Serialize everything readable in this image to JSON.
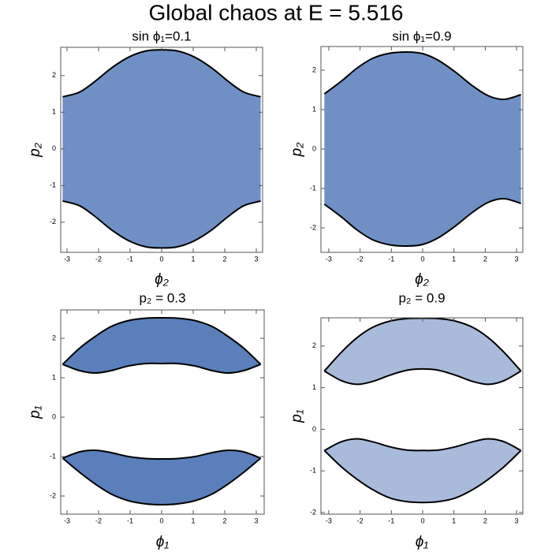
{
  "title": "Global chaos at E = 5.516",
  "chart_data": [
    {
      "type": "region",
      "title": "sin ϕ₁=0.1",
      "xlabel": "ϕ₂",
      "ylabel": "p₂",
      "xlim": [
        -3.2,
        3.2
      ],
      "ylim": [
        -2.82,
        2.77
      ],
      "xticks": [
        -3,
        -2,
        -1,
        0,
        1,
        2,
        3
      ],
      "yticks": [
        -2,
        -1,
        0,
        1,
        2
      ],
      "color": "#7090c5",
      "regions": [
        {
          "x": [
            -3.14,
            -2.6,
            -2.1,
            -1.6,
            -1.05,
            -0.5,
            0,
            0.5,
            1.05,
            1.6,
            2.1,
            2.6,
            3.14
          ],
          "upper": [
            1.42,
            1.55,
            1.85,
            2.2,
            2.5,
            2.67,
            2.7,
            2.67,
            2.5,
            2.2,
            1.85,
            1.55,
            1.42
          ],
          "lower": [
            -1.42,
            -1.55,
            -1.85,
            -2.2,
            -2.5,
            -2.67,
            -2.7,
            -2.67,
            -2.5,
            -2.2,
            -1.85,
            -1.55,
            -1.42
          ]
        }
      ]
    },
    {
      "type": "region",
      "title": "sin ϕ₁=0.9",
      "xlabel": "ϕ₂",
      "ylabel": "p₂",
      "xlim": [
        -3.25,
        3.2
      ],
      "ylim": [
        -2.62,
        2.6
      ],
      "xticks": [
        -3,
        -2,
        -1,
        0,
        1,
        2,
        3
      ],
      "yticks": [
        -2,
        -1,
        0,
        1,
        2
      ],
      "color": "#7090c5",
      "regions": [
        {
          "x": [
            -3.14,
            -2.6,
            -2.1,
            -1.6,
            -1.05,
            -0.5,
            0,
            0.5,
            1.05,
            1.6,
            2.1,
            2.6,
            3.14
          ],
          "upper": [
            1.4,
            1.72,
            2.05,
            2.3,
            2.43,
            2.46,
            2.42,
            2.25,
            1.95,
            1.6,
            1.35,
            1.26,
            1.38
          ],
          "lower": [
            -1.4,
            -1.72,
            -2.05,
            -2.3,
            -2.43,
            -2.46,
            -2.42,
            -2.25,
            -1.95,
            -1.6,
            -1.35,
            -1.26,
            -1.38
          ]
        }
      ]
    },
    {
      "type": "region",
      "title": "p₂ = 0.3",
      "xlabel": "ϕ₁",
      "ylabel": "p₁",
      "xlim": [
        -3.2,
        3.25
      ],
      "ylim": [
        -2.46,
        2.72
      ],
      "xticks": [
        -3,
        -2,
        -1,
        0,
        1,
        2,
        3
      ],
      "yticks": [
        -2,
        -1,
        0,
        1,
        2
      ],
      "color": "#5a7fbb",
      "regions": [
        {
          "x": [
            -3.14,
            -2.6,
            -2.1,
            -1.6,
            -1.05,
            -0.5,
            0,
            0.5,
            1.05,
            1.6,
            2.1,
            2.6,
            3.14
          ],
          "upper": [
            1.34,
            1.75,
            2.05,
            2.3,
            2.45,
            2.51,
            2.52,
            2.51,
            2.45,
            2.3,
            2.05,
            1.75,
            1.34
          ],
          "lower": [
            1.34,
            1.18,
            1.12,
            1.18,
            1.3,
            1.36,
            1.36,
            1.36,
            1.3,
            1.18,
            1.12,
            1.18,
            1.34
          ]
        },
        {
          "x": [
            -3.14,
            -2.6,
            -2.1,
            -1.6,
            -1.05,
            -0.5,
            0,
            0.5,
            1.05,
            1.6,
            2.1,
            2.6,
            3.14
          ],
          "upper": [
            -1.04,
            -0.88,
            -0.84,
            -0.9,
            -1.0,
            -1.05,
            -1.06,
            -1.05,
            -1.0,
            -0.9,
            -0.84,
            -0.88,
            -1.04
          ],
          "lower": [
            -1.04,
            -1.4,
            -1.7,
            -1.95,
            -2.12,
            -2.2,
            -2.22,
            -2.2,
            -2.12,
            -1.95,
            -1.7,
            -1.4,
            -1.04
          ]
        }
      ]
    },
    {
      "type": "region",
      "title": "p₂ = 0.9",
      "xlabel": "ϕ₁",
      "ylabel": "p₁",
      "xlim": [
        -3.25,
        3.2
      ],
      "ylim": [
        -2.04,
        2.68
      ],
      "xticks": [
        -3,
        -2,
        -1,
        0,
        1,
        2,
        3
      ],
      "yticks": [
        -2,
        -1,
        0,
        1,
        2
      ],
      "color": "#a9bbdb",
      "regions": [
        {
          "x": [
            -3.14,
            -2.6,
            -2.1,
            -1.6,
            -1.05,
            -0.5,
            0,
            0.5,
            1.05,
            1.6,
            2.1,
            2.6,
            3.14
          ],
          "upper": [
            1.4,
            1.85,
            2.2,
            2.45,
            2.6,
            2.66,
            2.67,
            2.66,
            2.6,
            2.45,
            2.2,
            1.85,
            1.4
          ],
          "lower": [
            1.4,
            1.17,
            1.08,
            1.15,
            1.3,
            1.42,
            1.45,
            1.42,
            1.3,
            1.15,
            1.08,
            1.17,
            1.4
          ]
        },
        {
          "x": [
            -3.14,
            -2.6,
            -2.1,
            -1.6,
            -1.05,
            -0.5,
            0,
            0.5,
            1.05,
            1.6,
            2.1,
            2.6,
            3.14
          ],
          "upper": [
            -0.51,
            -0.3,
            -0.23,
            -0.3,
            -0.42,
            -0.5,
            -0.51,
            -0.5,
            -0.42,
            -0.3,
            -0.23,
            -0.3,
            -0.51
          ],
          "lower": [
            -0.51,
            -0.9,
            -1.2,
            -1.45,
            -1.65,
            -1.74,
            -1.76,
            -1.74,
            -1.65,
            -1.45,
            -1.2,
            -0.9,
            -0.51
          ]
        }
      ]
    }
  ]
}
